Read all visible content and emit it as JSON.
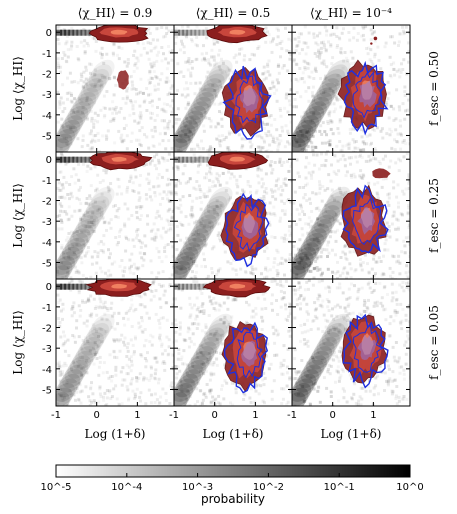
{
  "chart_data": {
    "type": "heatmap",
    "layout": "3x3 panel grid",
    "column_titles": [
      "⟨χ_HI⟩ = 0.9",
      "⟨χ_HI⟩ = 0.5",
      "⟨χ_HI⟩ = 10⁻⁴"
    ],
    "row_titles": [
      "f_esc = 0.50",
      "f_esc = 0.25",
      "f_esc = 0.05"
    ],
    "xlabel": "Log (1+δ)",
    "ylabel": "Log ⟨χ_HI⟩",
    "x_ticks": [
      "-1",
      "0",
      "1"
    ],
    "y_ticks": [
      "0",
      "-1",
      "-2",
      "-3",
      "-4",
      "-5"
    ],
    "xlim": [
      -1,
      1.9
    ],
    "ylim": [
      -5.8,
      0.35
    ],
    "colorbar": {
      "label": "probability",
      "scale": "log",
      "ticks": [
        "10^-5",
        "10^-4",
        "10^-3",
        "10^-2",
        "10^-1",
        "10^0"
      ],
      "range": [
        1e-05,
        1
      ],
      "colormap": "white-to-black"
    },
    "contours": {
      "red_filled": "dark-red filled contours of the distribution",
      "blue": "blue contour lines overlaid in the mostly-ionized regime"
    },
    "colors": {
      "dark_red": "#8b1e1e",
      "red": "#c8463c",
      "orange": "#f08060",
      "blue": "#1e2fe0"
    }
  }
}
